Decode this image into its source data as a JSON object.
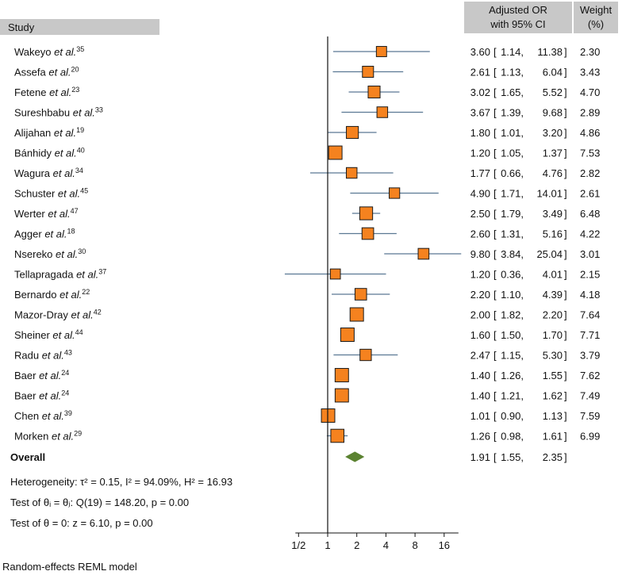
{
  "header": {
    "study": "Study",
    "or_line1": "Adjusted OR",
    "or_line2": "with 95% CI",
    "weight_line1": "Weight",
    "weight_line2": "(%)"
  },
  "footer": {
    "heterogeneity": "Heterogeneity: τ² = 0.15, I² = 94.09%, H² = 16.93",
    "test_q": "Test of θᵢ = θⱼ: Q(19) = 148.20, p = 0.00",
    "test_z": "Test of θ = 0: z = 6.10, p = 0.00",
    "model": "Random-effects REML model"
  },
  "colors": {
    "header_bg": "#c8c8c8",
    "marker": "#f5821f",
    "marker_stroke": "#1a1a1a",
    "ci_line": "#5a7893",
    "diamond": "#5b8231",
    "axis": "#111111"
  },
  "chart_data": {
    "type": "forest",
    "scale": "log",
    "xlim": [
      0.35,
      24
    ],
    "null_value": 1,
    "ticks": [
      0.5,
      1,
      2,
      4,
      8,
      16
    ],
    "tick_labels": [
      "1/2",
      "1",
      "2",
      "4",
      "8",
      "16"
    ],
    "studies": [
      {
        "name": "Wakeyo",
        "ref": "35",
        "or": 3.6,
        "lo": 1.14,
        "hi": 11.38,
        "or_text": "3.60",
        "lo_text": "1.14",
        "hi_text": "11.38",
        "weight": 2.3,
        "weight_text": "2.30"
      },
      {
        "name": "Assefa",
        "ref": "20",
        "or": 2.61,
        "lo": 1.13,
        "hi": 6.04,
        "or_text": "2.61",
        "lo_text": "1.13",
        "hi_text": "6.04",
        "weight": 3.43,
        "weight_text": "3.43"
      },
      {
        "name": "Fetene",
        "ref": "23",
        "or": 3.02,
        "lo": 1.65,
        "hi": 5.52,
        "or_text": "3.02",
        "lo_text": "1.65",
        "hi_text": "5.52",
        "weight": 4.7,
        "weight_text": "4.70"
      },
      {
        "name": "Sureshbabu",
        "ref": "33",
        "or": 3.67,
        "lo": 1.39,
        "hi": 9.68,
        "or_text": "3.67",
        "lo_text": "1.39",
        "hi_text": "9.68",
        "weight": 2.89,
        "weight_text": "2.89"
      },
      {
        "name": "Alijahan",
        "ref": "19",
        "or": 1.8,
        "lo": 1.01,
        "hi": 3.2,
        "or_text": "1.80",
        "lo_text": "1.01",
        "hi_text": "3.20",
        "weight": 4.86,
        "weight_text": "4.86"
      },
      {
        "name": "Bánhidy",
        "ref": "40",
        "or": 1.2,
        "lo": 1.05,
        "hi": 1.37,
        "or_text": "1.20",
        "lo_text": "1.05",
        "hi_text": "1.37",
        "weight": 7.53,
        "weight_text": "7.53"
      },
      {
        "name": "Wagura",
        "ref": "34",
        "or": 1.77,
        "lo": 0.66,
        "hi": 4.76,
        "or_text": "1.77",
        "lo_text": "0.66",
        "hi_text": "4.76",
        "weight": 2.82,
        "weight_text": "2.82"
      },
      {
        "name": "Schuster",
        "ref": "45",
        "or": 4.9,
        "lo": 1.71,
        "hi": 14.01,
        "or_text": "4.90",
        "lo_text": "1.71",
        "hi_text": "14.01",
        "weight": 2.61,
        "weight_text": "2.61"
      },
      {
        "name": "Werter",
        "ref": "47",
        "or": 2.5,
        "lo": 1.79,
        "hi": 3.49,
        "or_text": "2.50",
        "lo_text": "1.79",
        "hi_text": "3.49",
        "weight": 6.48,
        "weight_text": "6.48"
      },
      {
        "name": "Agger",
        "ref": "18",
        "or": 2.6,
        "lo": 1.31,
        "hi": 5.16,
        "or_text": "2.60",
        "lo_text": "1.31",
        "hi_text": "5.16",
        "weight": 4.22,
        "weight_text": "4.22"
      },
      {
        "name": "Nsereko",
        "ref": "30",
        "or": 9.8,
        "lo": 3.84,
        "hi": 25.04,
        "or_text": "9.80",
        "lo_text": "3.84",
        "hi_text": "25.04",
        "weight": 3.01,
        "weight_text": "3.01"
      },
      {
        "name": "Tellapragada",
        "ref": "37",
        "or": 1.2,
        "lo": 0.36,
        "hi": 4.01,
        "or_text": "1.20",
        "lo_text": "0.36",
        "hi_text": "4.01",
        "weight": 2.15,
        "weight_text": "2.15"
      },
      {
        "name": "Bernardo",
        "ref": "22",
        "or": 2.2,
        "lo": 1.1,
        "hi": 4.39,
        "or_text": "2.20",
        "lo_text": "1.10",
        "hi_text": "4.39",
        "weight": 4.18,
        "weight_text": "4.18"
      },
      {
        "name": "Mazor-Dray",
        "ref": "42",
        "or": 2.0,
        "lo": 1.82,
        "hi": 2.2,
        "or_text": "2.00",
        "lo_text": "1.82",
        "hi_text": "2.20",
        "weight": 7.64,
        "weight_text": "7.64"
      },
      {
        "name": "Sheiner",
        "ref": "44",
        "or": 1.6,
        "lo": 1.5,
        "hi": 1.7,
        "or_text": "1.60",
        "lo_text": "1.50",
        "hi_text": "1.70",
        "weight": 7.71,
        "weight_text": "7.71"
      },
      {
        "name": "Radu",
        "ref": "43",
        "or": 2.47,
        "lo": 1.15,
        "hi": 5.3,
        "or_text": "2.47",
        "lo_text": "1.15",
        "hi_text": "5.30",
        "weight": 3.79,
        "weight_text": "3.79"
      },
      {
        "name": "Baer",
        "ref": "24",
        "or": 1.4,
        "lo": 1.26,
        "hi": 1.55,
        "or_text": "1.40",
        "lo_text": "1.26",
        "hi_text": "1.55",
        "weight": 7.62,
        "weight_text": "7.62"
      },
      {
        "name": "Baer",
        "ref": "24",
        "or": 1.4,
        "lo": 1.21,
        "hi": 1.62,
        "or_text": "1.40",
        "lo_text": "1.21",
        "hi_text": "1.62",
        "weight": 7.49,
        "weight_text": "7.49"
      },
      {
        "name": "Chen",
        "ref": "39",
        "or": 1.01,
        "lo": 0.9,
        "hi": 1.13,
        "or_text": "1.01",
        "lo_text": "0.90",
        "hi_text": "1.13",
        "weight": 7.59,
        "weight_text": "7.59"
      },
      {
        "name": "Morken",
        "ref": "29",
        "or": 1.26,
        "lo": 0.98,
        "hi": 1.61,
        "or_text": "1.26",
        "lo_text": "0.98",
        "hi_text": "1.61",
        "weight": 6.99,
        "weight_text": "6.99"
      }
    ],
    "etal": "et al.",
    "overall": {
      "label": "Overall",
      "or": 1.91,
      "lo": 1.55,
      "hi": 2.35,
      "or_text": "1.91",
      "lo_text": "1.55",
      "hi_text": "2.35"
    }
  }
}
